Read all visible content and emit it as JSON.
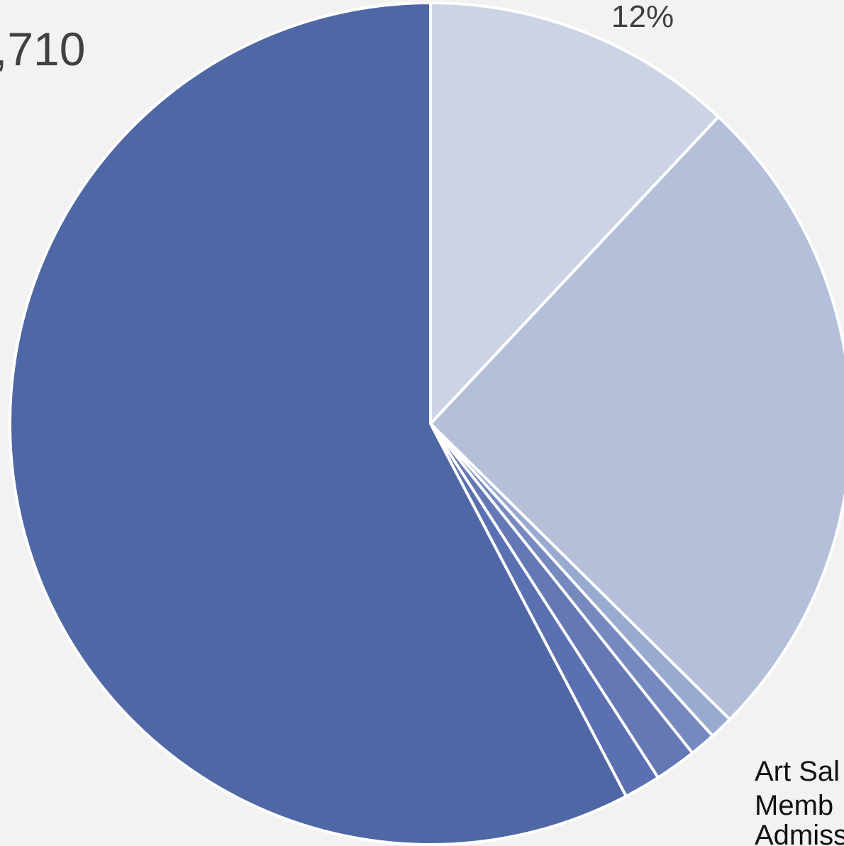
{
  "chart_data": {
    "type": "pie",
    "title": "",
    "labels": {
      "top_left_value": ",710",
      "top_percent": "12%",
      "bottom_right_lines": [
        "Art Sal",
        "Memb",
        "Admiss"
      ]
    },
    "slices": [
      {
        "name": "",
        "value": 12.0,
        "color": "#ccd3e4"
      },
      {
        "name": "",
        "value": 25.4,
        "color": "#b4c0da"
      },
      {
        "name": "",
        "value": 0.9,
        "color": "#99aad0"
      },
      {
        "name": "",
        "value": 1.0,
        "color": "#7689bf"
      },
      {
        "name": "",
        "value": 1.6,
        "color": "#6378b5"
      },
      {
        "name": "",
        "value": 1.4,
        "color": "#5b70b1"
      },
      {
        "name": "",
        "value": 57.7,
        "color": "#4f68a5"
      }
    ],
    "start_angle_deg": 0,
    "direction": "clockwise",
    "legend": "none"
  }
}
